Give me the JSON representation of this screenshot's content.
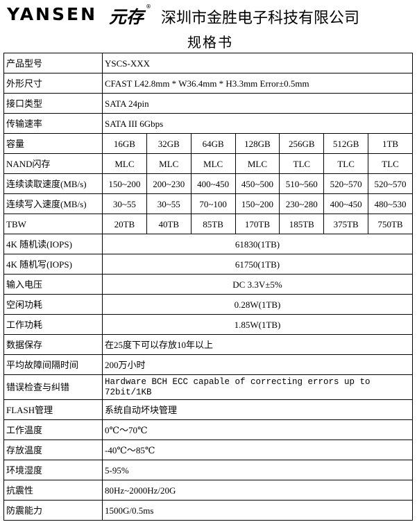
{
  "header": {
    "logo": "YANSEN",
    "logo_cn": "元存",
    "logo_mark": "®",
    "company": "深圳市金胜电子科技有限公司",
    "subtitle": "规格书"
  },
  "table": {
    "rows": [
      {
        "label": "产品型号",
        "value": "YSCS-XXX"
      },
      {
        "label": "外形尺寸",
        "value": "CFAST L42.8mm * W36.4mm * H3.3mm Error±0.5mm"
      },
      {
        "label": "接口类型",
        "value": "SATA 24pin"
      },
      {
        "label": "传输速率",
        "value": "SATA III 6Gbps"
      },
      {
        "label": "容量",
        "values": [
          "16GB",
          "32GB",
          "64GB",
          "128GB",
          "256GB",
          "512GB",
          "1TB"
        ]
      },
      {
        "label": "NAND闪存",
        "values": [
          "MLC",
          "MLC",
          "MLC",
          "MLC",
          "TLC",
          "TLC",
          "TLC"
        ]
      },
      {
        "label": "连续读取速度(MB/s)",
        "values": [
          "150~200",
          "200~230",
          "400~450",
          "450~500",
          "510~560",
          "520~570",
          "520~570"
        ]
      },
      {
        "label": "连续写入速度(MB/s)",
        "values": [
          "30~55",
          "30~55",
          "70~100",
          "150~200",
          "230~280",
          "400~450",
          "480~530"
        ]
      },
      {
        "label": "TBW",
        "values": [
          "20TB",
          "40TB",
          "85TB",
          "170TB",
          "185TB",
          "375TB",
          "750TB"
        ]
      },
      {
        "label": "4K 随机读(IOPS)",
        "value": "61830(1TB)"
      },
      {
        "label": "4K 随机写(IOPS)",
        "value": "61750(1TB)"
      },
      {
        "label": "输入电压",
        "value": "DC 3.3V±5%"
      },
      {
        "label": "空闲功耗",
        "value": "0.28W(1TB)"
      },
      {
        "label": "工作功耗",
        "value": "1.85W(1TB)"
      },
      {
        "label": "数据保存",
        "value": "在25度下可以存放10年以上"
      },
      {
        "label": "平均故障间隔时间",
        "value": "200万小时"
      },
      {
        "label": "错误检查与纠错",
        "value": "Hardware BCH ECC capable of correcting errors up to 72bit/1KB"
      },
      {
        "label": "FLASH管理",
        "value": "系统自动坏块管理"
      },
      {
        "label": "工作温度",
        "value": "0℃～70℃"
      },
      {
        "label": "存放温度",
        "value": "-40℃～85℃"
      },
      {
        "label": "环境湿度",
        "value": "5-95%"
      },
      {
        "label": "抗震性",
        "value": "80Hz~2000Hz/20G"
      },
      {
        "label": "防震能力",
        "value": "1500G/0.5ms"
      }
    ]
  }
}
